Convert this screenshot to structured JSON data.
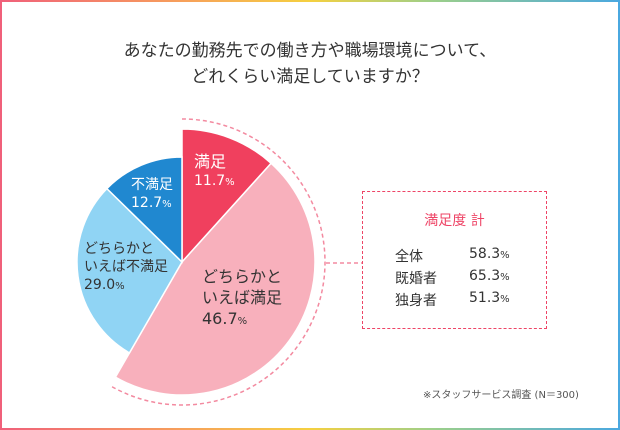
{
  "title_lines": [
    "あなたの勤務先での働き方や職場環境について、",
    "どれくらい満足していますか？"
  ],
  "chart_data": {
    "type": "pie",
    "title": "あなたの勤務先での働き方や職場環境について、どれくらい満足していますか？",
    "slices": [
      {
        "label": "満足",
        "value": 11.7,
        "display": "11.7",
        "color": "#f0405e",
        "text_color": "#ffffff"
      },
      {
        "label": "どちらかといえば満足",
        "label_lines": [
          "どちらかと",
          "いえば満足"
        ],
        "value": 46.7,
        "display": "46.7",
        "color": "#f8b0bc",
        "text_color": "#333333"
      },
      {
        "label": "どちらかといえば不満足",
        "label_lines": [
          "どちらかと",
          "いえば不満足"
        ],
        "value": 29.0,
        "display": "29.0",
        "color": "#90d4f4",
        "text_color": "#333333"
      },
      {
        "label": "不満足",
        "value": 12.7,
        "display": "12.7",
        "color": "#2088d0",
        "text_color": "#ffffff"
      }
    ],
    "unit": "%",
    "start": "top",
    "direction": "clockwise"
  },
  "summary": {
    "title": "満足度 計",
    "rows": [
      {
        "label": "全体",
        "value": "58.3"
      },
      {
        "label": "既婚者",
        "value": "65.3"
      },
      {
        "label": "独身者",
        "value": "51.3"
      }
    ],
    "unit": "%"
  },
  "note": "※スタッフサービス調査 (N＝300)"
}
